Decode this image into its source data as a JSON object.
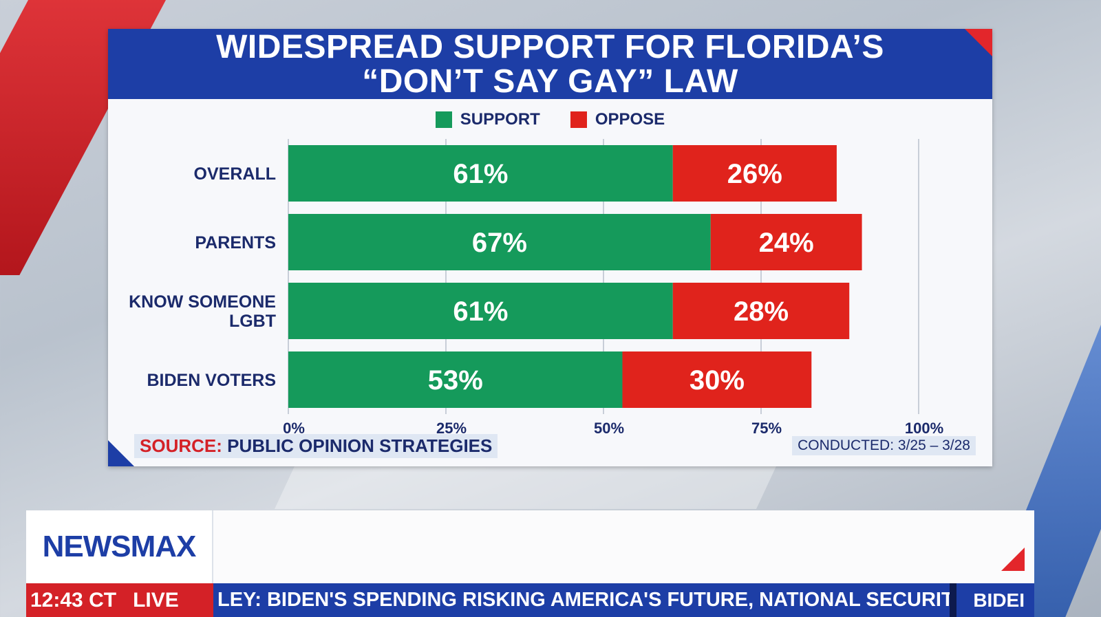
{
  "title": {
    "line1": "WIDESPREAD SUPPORT FOR FLORIDA’S",
    "line2": "“DON’T SAY GAY” LAW"
  },
  "colors": {
    "support": "#159a5b",
    "oppose": "#e0231c",
    "brand_blue": "#1d3ea6"
  },
  "chart_data": {
    "type": "bar",
    "orientation": "horizontal",
    "stacked": true,
    "categories": [
      "OVERALL",
      "PARENTS",
      "KNOW SOMEONE LGBT",
      "BIDEN VOTERS"
    ],
    "category_lines": [
      [
        "OVERALL"
      ],
      [
        "PARENTS"
      ],
      [
        "KNOW SOMEONE",
        "LGBT"
      ],
      [
        "BIDEN VOTERS"
      ]
    ],
    "series": [
      {
        "name": "SUPPORT",
        "values": [
          61,
          67,
          61,
          53
        ],
        "labels": [
          "61%",
          "67%",
          "61%",
          "53%"
        ]
      },
      {
        "name": "OPPOSE",
        "values": [
          26,
          24,
          28,
          30
        ],
        "labels": [
          "26%",
          "24%",
          "28%",
          "30%"
        ]
      }
    ],
    "xlim": [
      0,
      100
    ],
    "ticks": [
      0,
      25,
      50,
      75,
      100
    ],
    "tick_labels": [
      "0%",
      "25%",
      "50%",
      "75%",
      "100%"
    ],
    "grid": true,
    "legend_position": "top-center"
  },
  "source": {
    "label": "SOURCE:",
    "text": "PUBLIC OPINION STRATEGIES"
  },
  "conducted": "CONDUCTED: 3/25 – 3/28",
  "lower_third": {
    "logo": "NEWSMAX",
    "time": "12:43 CT",
    "live": "LIVE",
    "ticker": "LEY: BIDEN'S SPENDING RISKING AMERICA'S FUTURE, NATIONAL SECURITY . . .",
    "ticker_next": "BIDEI"
  }
}
